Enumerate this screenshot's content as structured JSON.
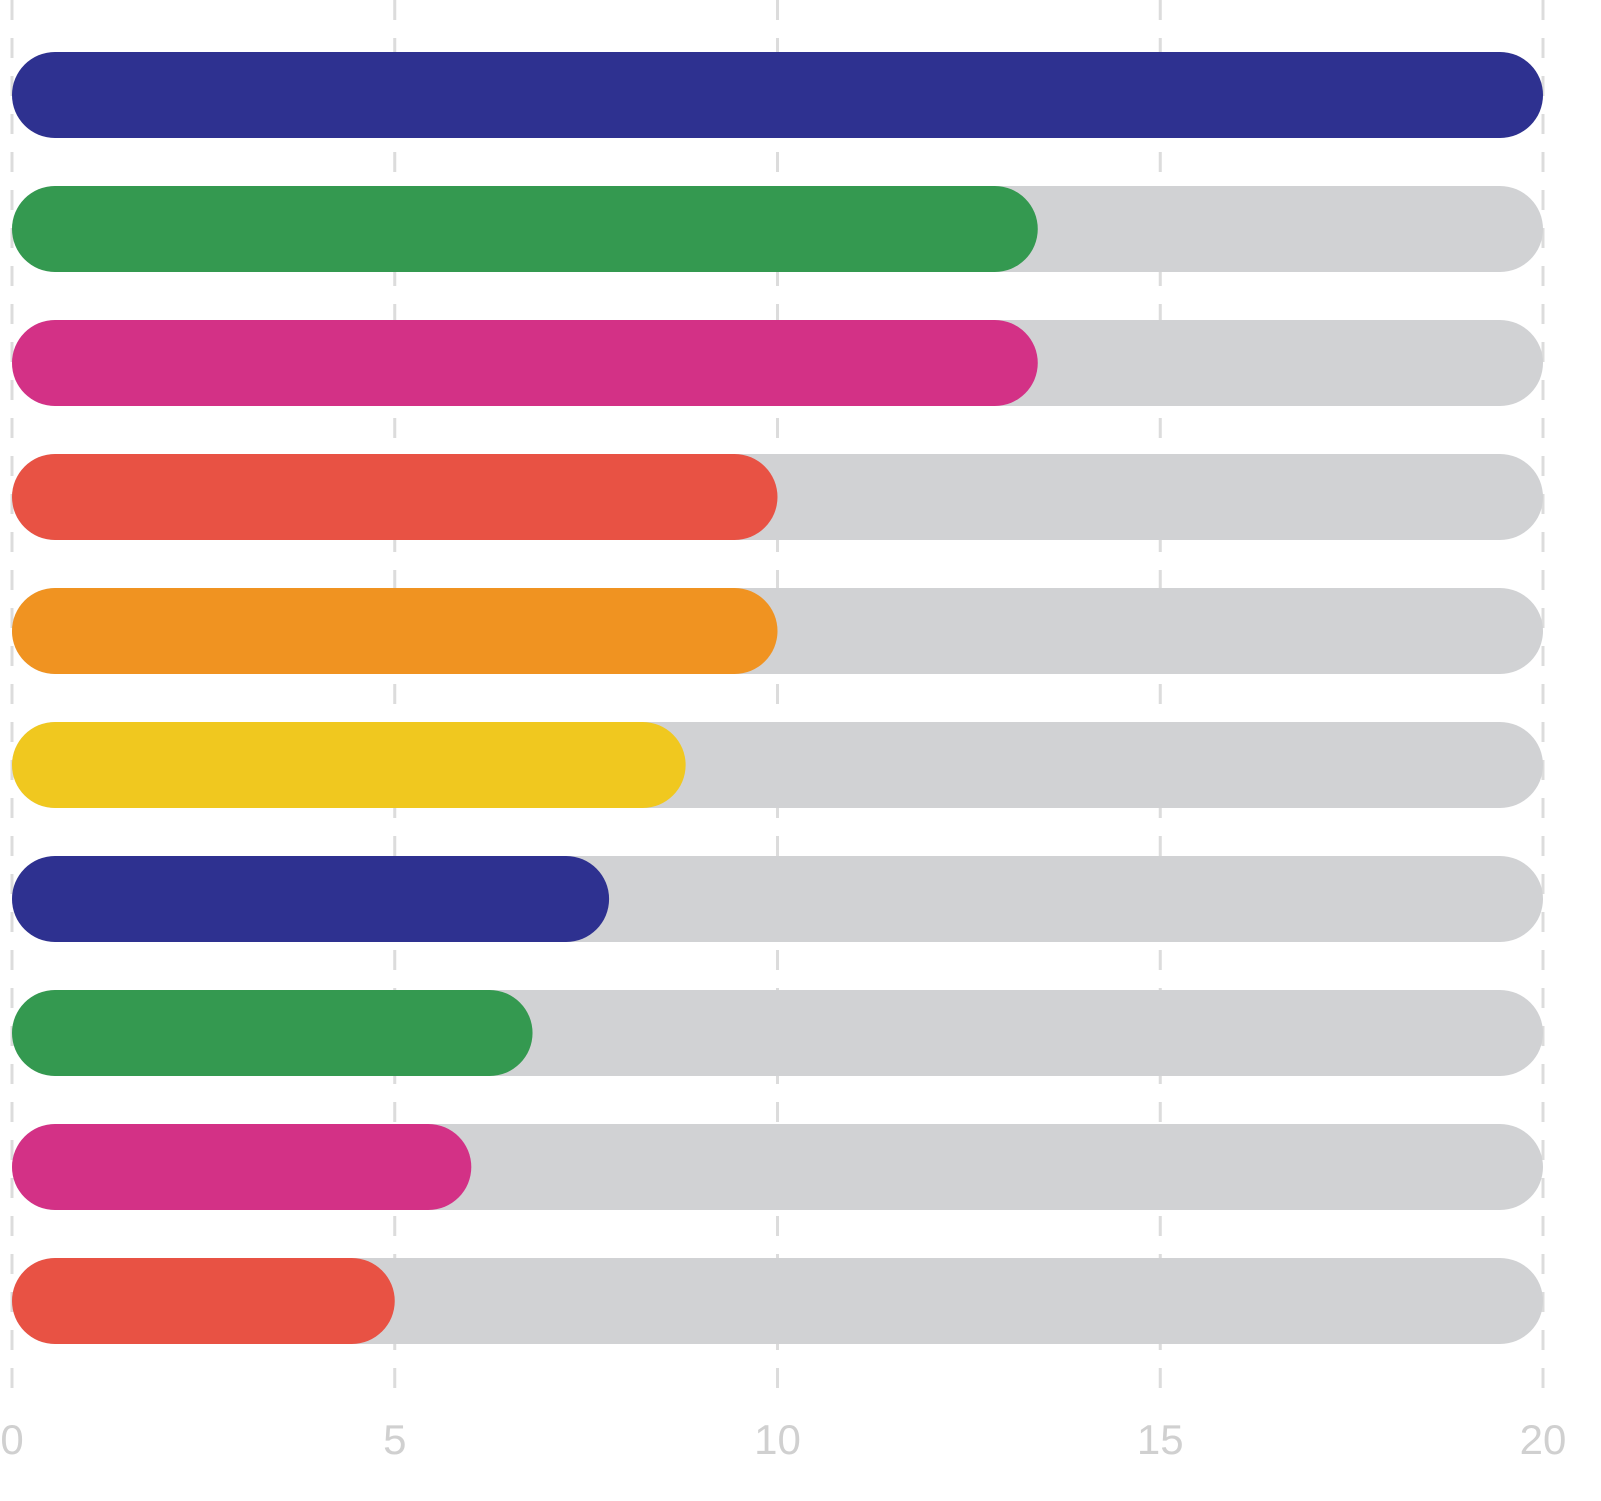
{
  "chart_data": {
    "type": "bar",
    "orientation": "horizontal",
    "categories": [
      null,
      null,
      null,
      null,
      null,
      null,
      null,
      null,
      null,
      null
    ],
    "values": [
      20,
      13.4,
      13.4,
      10,
      10,
      8.8,
      7.8,
      6.8,
      6,
      5
    ],
    "colors": [
      "#2e3190",
      "#349950",
      "#d33186",
      "#e85244",
      "#f09321",
      "#f0c81f",
      "#2e3190",
      "#349950",
      "#d33186",
      "#e85244"
    ],
    "track_color": "#d1d2d4",
    "xlim": [
      0,
      20
    ],
    "xticks": [
      0,
      5,
      10,
      15,
      20
    ],
    "grid": true
  }
}
